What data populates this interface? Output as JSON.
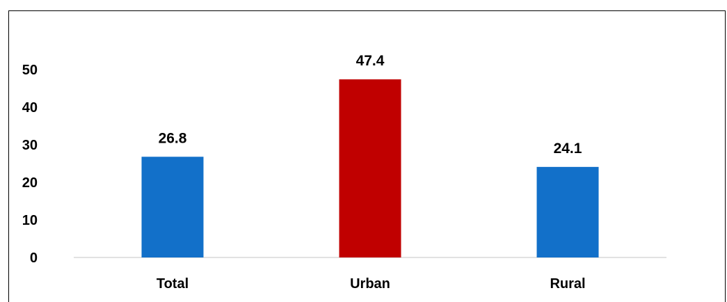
{
  "chart_data": {
    "type": "bar",
    "categories": [
      "Total",
      "Urban",
      "Rural"
    ],
    "values": [
      26.8,
      47.4,
      24.1
    ],
    "data_labels": [
      "26.8",
      "47.4",
      "24.1"
    ],
    "colors": [
      "#1270c9",
      "#c00000",
      "#1270c9"
    ],
    "y_ticks": [
      "0",
      "10",
      "20",
      "30",
      "40",
      "50"
    ],
    "ylim": [
      0,
      50
    ],
    "grid": false,
    "legend": "none",
    "title": "",
    "xlabel": "",
    "ylabel": ""
  }
}
